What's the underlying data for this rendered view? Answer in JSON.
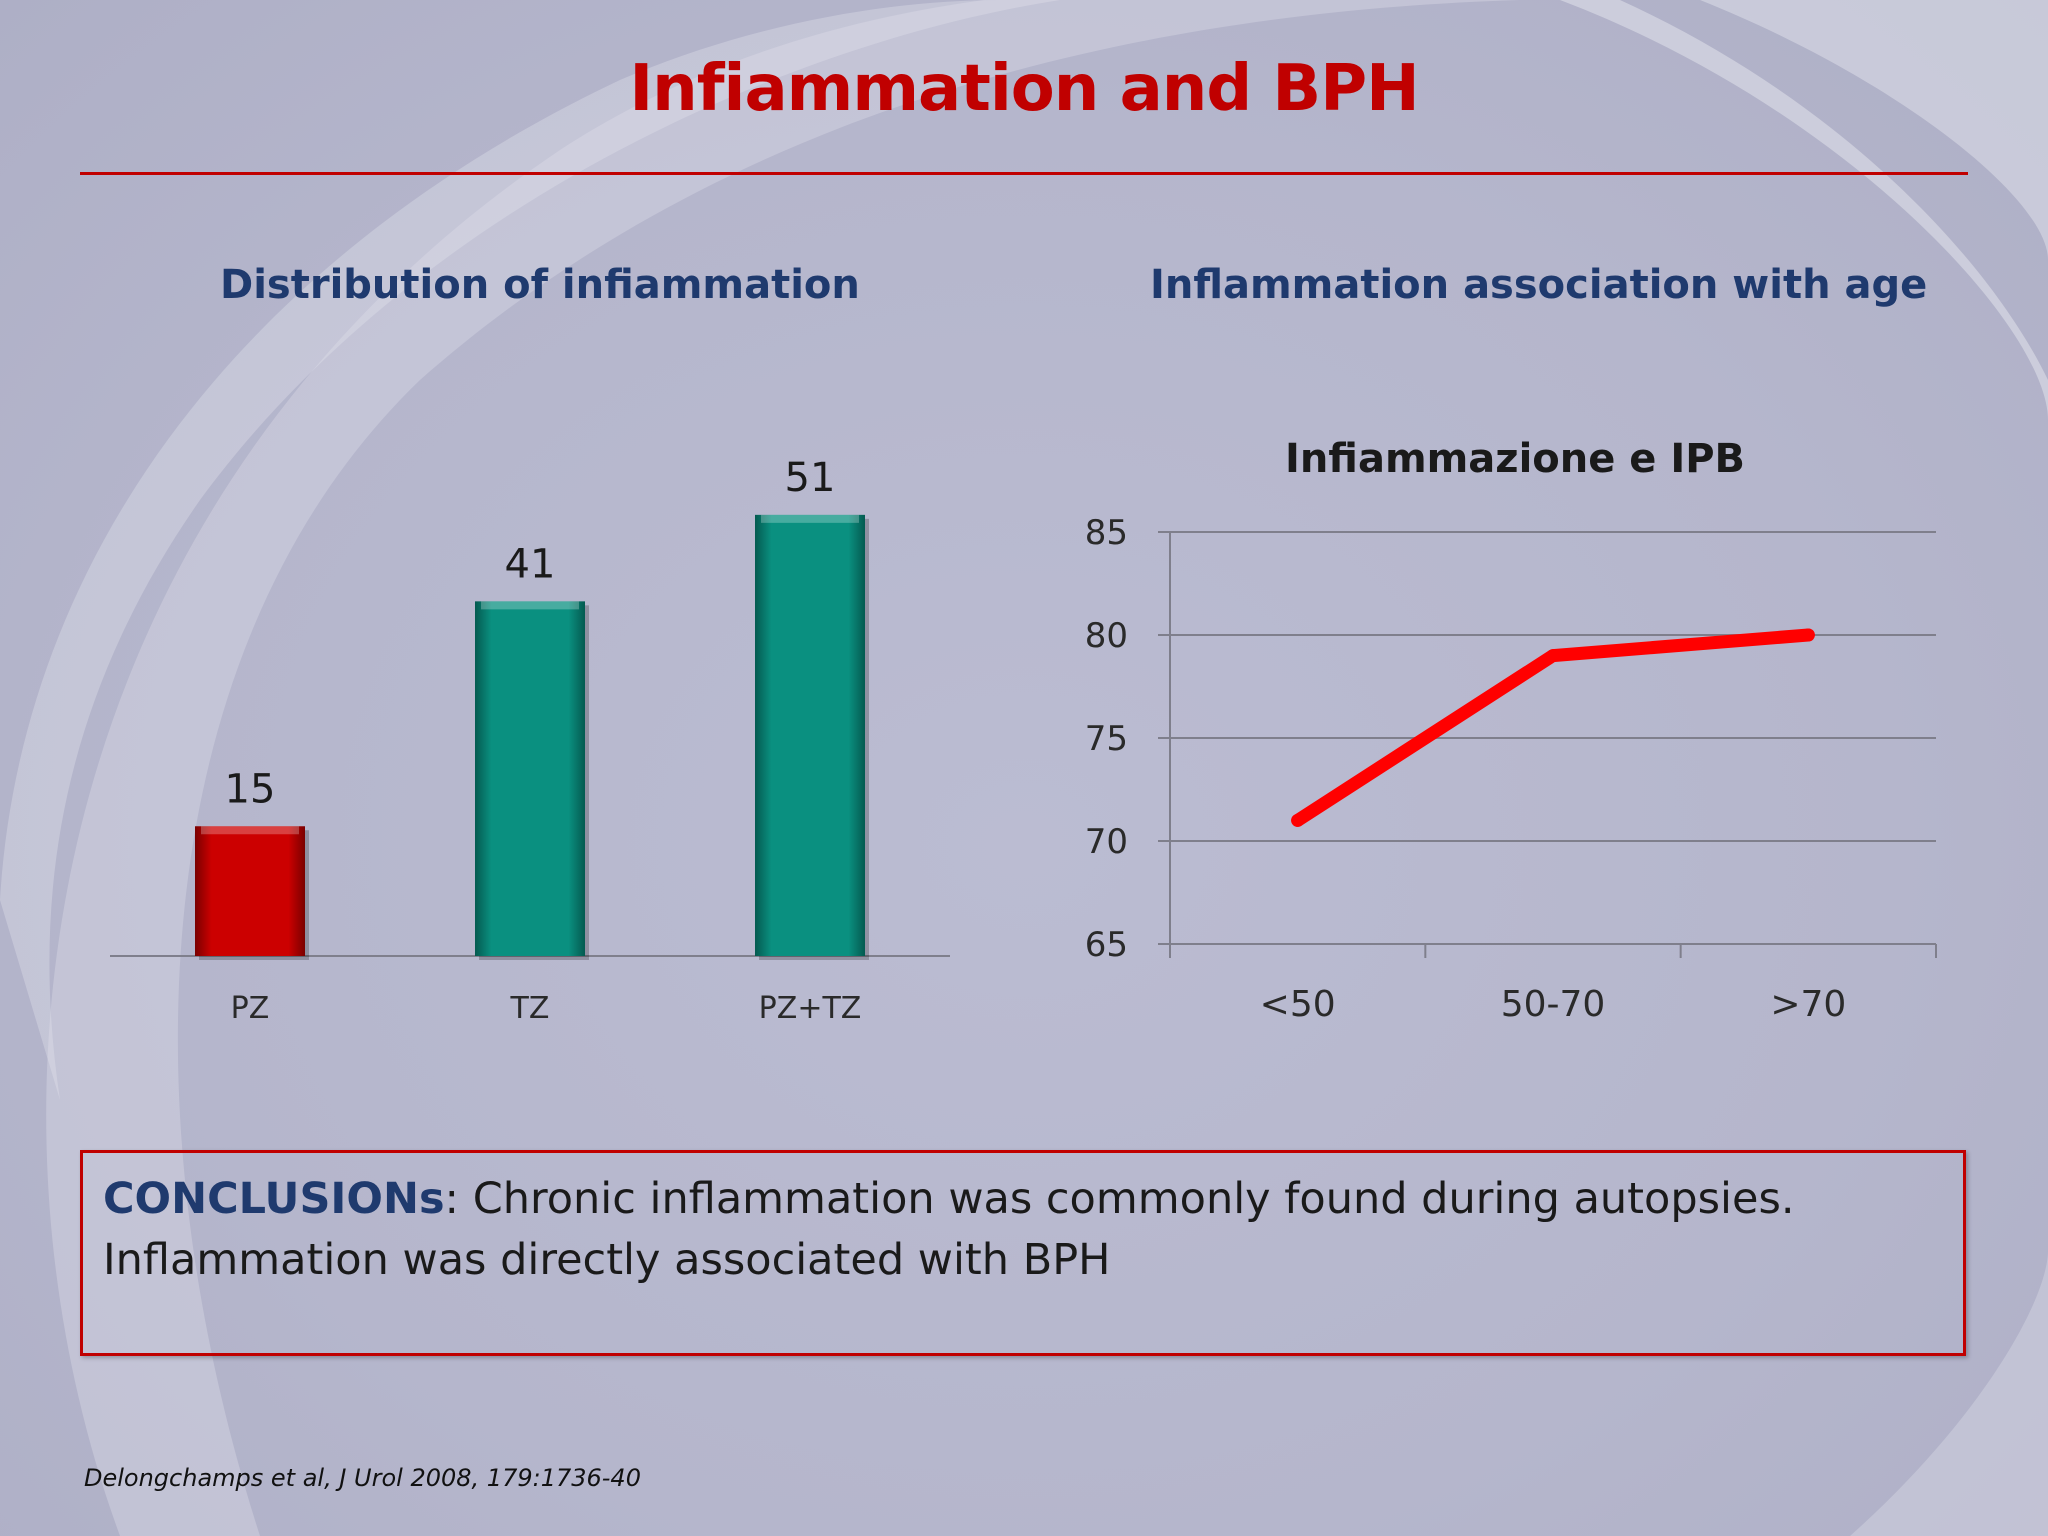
{
  "slide": {
    "title": "Infiammation and BPH",
    "subtitle_left": "Distribution of  infiammation",
    "subtitle_right": "Inflammation association with age",
    "conclusion_label": "CONCLUSIONs",
    "conclusion_line1_rest": ": Chronic inflammation was commonly found during autopsies.",
    "conclusion_line2": "Inflammation was directly associated with BPH",
    "citation": "Delongchamps et al, J Urol 2008, 179:1736-40",
    "colors": {
      "title": "#c00000",
      "subtitle": "#1f3a6e",
      "rule": "#c00000"
    }
  },
  "chart_data": [
    {
      "type": "bar",
      "categories": [
        "PZ",
        "TZ",
        "PZ+TZ"
      ],
      "values": [
        15,
        41,
        51
      ],
      "data_labels": [
        "15",
        "41",
        "51"
      ],
      "bar_colors": [
        "#cc0000",
        "#0a9080",
        "#0a9080"
      ],
      "ylim": [
        0,
        60
      ],
      "grid": false,
      "axis": "x-baseline-only"
    },
    {
      "type": "line",
      "title": "Infiammazione e IPB",
      "categories": [
        "<50",
        "50-70",
        ">70"
      ],
      "values": [
        71,
        79,
        80
      ],
      "ylim": [
        65,
        85
      ],
      "yticks": [
        65,
        70,
        75,
        80,
        85
      ],
      "line_color": "#ff0000",
      "grid": true
    }
  ]
}
